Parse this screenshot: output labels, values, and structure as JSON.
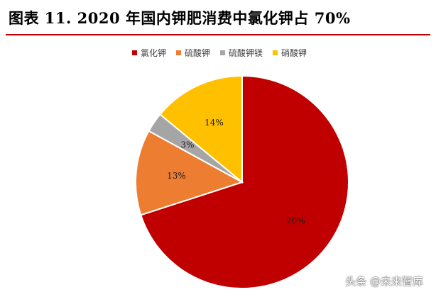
{
  "title": "图表 11. 2020 年国内钾肥消费中氯化钾占 70%",
  "watermark": "头条 @未来智库",
  "colors": {
    "rule": "#c00000"
  },
  "chart_data": {
    "type": "pie",
    "series": [
      {
        "name": "氯化钾",
        "value": 70,
        "label": "70%",
        "color": "#c00000"
      },
      {
        "name": "硫酸钾",
        "value": 13,
        "label": "13%",
        "color": "#ed7d31"
      },
      {
        "name": "硫酸钾镁",
        "value": 3,
        "label": "3%",
        "color": "#a5a5a5"
      },
      {
        "name": "硝酸钾",
        "value": 14,
        "label": "14%",
        "color": "#ffc000"
      }
    ],
    "legend_position": "top",
    "start": "12 o'clock",
    "direction": "clockwise"
  }
}
